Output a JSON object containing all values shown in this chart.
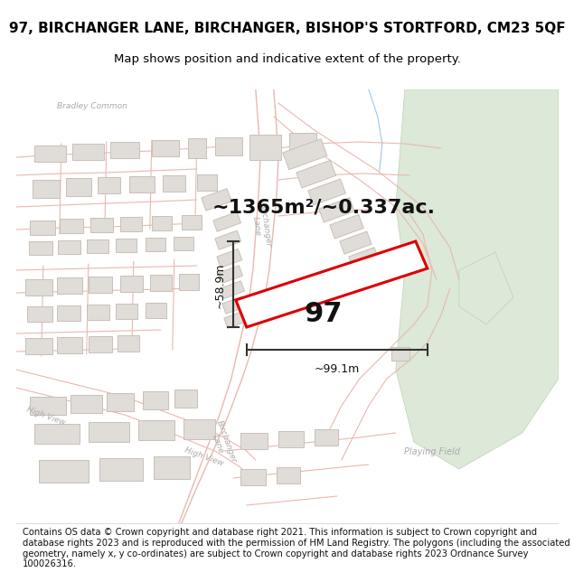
{
  "title": "97, BIRCHANGER LANE, BIRCHANGER, BISHOP'S STORTFORD, CM23 5QF",
  "subtitle": "Map shows position and indicative extent of the property.",
  "area_label": "~1365m²/~0.337ac.",
  "property_number": "97",
  "dim_width": "~99.1m",
  "dim_height": "~58.9m",
  "footer": "Contains OS data © Crown copyright and database right 2021. This information is subject to Crown copyright and database rights 2023 and is reproduced with the permission of HM Land Registry. The polygons (including the associated geometry, namely x, y co-ordinates) are subject to Crown copyright and database rights 2023 Ordnance Survey 100026316.",
  "map_bg": "#f9f8f7",
  "road_line_color": "#e8b8b0",
  "building_fill": "#e0dcd8",
  "building_edge": "#c8c0b8",
  "green_fill": "#dce8d8",
  "green_edge": "#c0d0b8",
  "property_edge": "#dd0000",
  "property_fill": "#ffffff",
  "dim_line_color": "#333333",
  "text_color": "#111111",
  "label_color": "#aaaaaa",
  "title_fontsize": 11,
  "subtitle_fontsize": 9.5,
  "footer_fontsize": 7.2
}
